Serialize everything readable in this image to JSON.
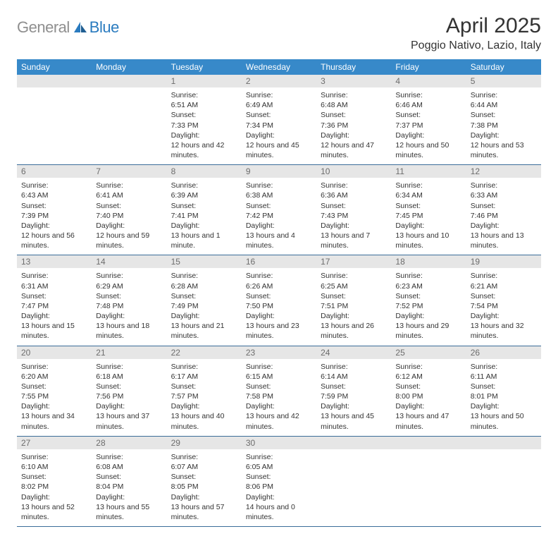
{
  "brand": {
    "general": "General",
    "blue": "Blue"
  },
  "title": "April 2025",
  "location": "Poggio Nativo, Lazio, Italy",
  "colors": {
    "header_bg": "#3789c9",
    "header_fg": "#ffffff",
    "daynum_bg": "#e6e6e6",
    "daynum_fg": "#6d6d6d",
    "rule": "#3b6d99",
    "logo_gray": "#8f8f8f",
    "logo_blue": "#2a7bbf"
  },
  "weekdays": [
    "Sunday",
    "Monday",
    "Tuesday",
    "Wednesday",
    "Thursday",
    "Friday",
    "Saturday"
  ],
  "first_weekday_index": 2,
  "days": [
    {
      "n": 1,
      "sunrise": "6:51 AM",
      "sunset": "7:33 PM",
      "daylight": "12 hours and 42 minutes."
    },
    {
      "n": 2,
      "sunrise": "6:49 AM",
      "sunset": "7:34 PM",
      "daylight": "12 hours and 45 minutes."
    },
    {
      "n": 3,
      "sunrise": "6:48 AM",
      "sunset": "7:36 PM",
      "daylight": "12 hours and 47 minutes."
    },
    {
      "n": 4,
      "sunrise": "6:46 AM",
      "sunset": "7:37 PM",
      "daylight": "12 hours and 50 minutes."
    },
    {
      "n": 5,
      "sunrise": "6:44 AM",
      "sunset": "7:38 PM",
      "daylight": "12 hours and 53 minutes."
    },
    {
      "n": 6,
      "sunrise": "6:43 AM",
      "sunset": "7:39 PM",
      "daylight": "12 hours and 56 minutes."
    },
    {
      "n": 7,
      "sunrise": "6:41 AM",
      "sunset": "7:40 PM",
      "daylight": "12 hours and 59 minutes."
    },
    {
      "n": 8,
      "sunrise": "6:39 AM",
      "sunset": "7:41 PM",
      "daylight": "13 hours and 1 minute."
    },
    {
      "n": 9,
      "sunrise": "6:38 AM",
      "sunset": "7:42 PM",
      "daylight": "13 hours and 4 minutes."
    },
    {
      "n": 10,
      "sunrise": "6:36 AM",
      "sunset": "7:43 PM",
      "daylight": "13 hours and 7 minutes."
    },
    {
      "n": 11,
      "sunrise": "6:34 AM",
      "sunset": "7:45 PM",
      "daylight": "13 hours and 10 minutes."
    },
    {
      "n": 12,
      "sunrise": "6:33 AM",
      "sunset": "7:46 PM",
      "daylight": "13 hours and 13 minutes."
    },
    {
      "n": 13,
      "sunrise": "6:31 AM",
      "sunset": "7:47 PM",
      "daylight": "13 hours and 15 minutes."
    },
    {
      "n": 14,
      "sunrise": "6:29 AM",
      "sunset": "7:48 PM",
      "daylight": "13 hours and 18 minutes."
    },
    {
      "n": 15,
      "sunrise": "6:28 AM",
      "sunset": "7:49 PM",
      "daylight": "13 hours and 21 minutes."
    },
    {
      "n": 16,
      "sunrise": "6:26 AM",
      "sunset": "7:50 PM",
      "daylight": "13 hours and 23 minutes."
    },
    {
      "n": 17,
      "sunrise": "6:25 AM",
      "sunset": "7:51 PM",
      "daylight": "13 hours and 26 minutes."
    },
    {
      "n": 18,
      "sunrise": "6:23 AM",
      "sunset": "7:52 PM",
      "daylight": "13 hours and 29 minutes."
    },
    {
      "n": 19,
      "sunrise": "6:21 AM",
      "sunset": "7:54 PM",
      "daylight": "13 hours and 32 minutes."
    },
    {
      "n": 20,
      "sunrise": "6:20 AM",
      "sunset": "7:55 PM",
      "daylight": "13 hours and 34 minutes."
    },
    {
      "n": 21,
      "sunrise": "6:18 AM",
      "sunset": "7:56 PM",
      "daylight": "13 hours and 37 minutes."
    },
    {
      "n": 22,
      "sunrise": "6:17 AM",
      "sunset": "7:57 PM",
      "daylight": "13 hours and 40 minutes."
    },
    {
      "n": 23,
      "sunrise": "6:15 AM",
      "sunset": "7:58 PM",
      "daylight": "13 hours and 42 minutes."
    },
    {
      "n": 24,
      "sunrise": "6:14 AM",
      "sunset": "7:59 PM",
      "daylight": "13 hours and 45 minutes."
    },
    {
      "n": 25,
      "sunrise": "6:12 AM",
      "sunset": "8:00 PM",
      "daylight": "13 hours and 47 minutes."
    },
    {
      "n": 26,
      "sunrise": "6:11 AM",
      "sunset": "8:01 PM",
      "daylight": "13 hours and 50 minutes."
    },
    {
      "n": 27,
      "sunrise": "6:10 AM",
      "sunset": "8:02 PM",
      "daylight": "13 hours and 52 minutes."
    },
    {
      "n": 28,
      "sunrise": "6:08 AM",
      "sunset": "8:04 PM",
      "daylight": "13 hours and 55 minutes."
    },
    {
      "n": 29,
      "sunrise": "6:07 AM",
      "sunset": "8:05 PM",
      "daylight": "13 hours and 57 minutes."
    },
    {
      "n": 30,
      "sunrise": "6:05 AM",
      "sunset": "8:06 PM",
      "daylight": "14 hours and 0 minutes."
    }
  ],
  "labels": {
    "sunrise": "Sunrise:",
    "sunset": "Sunset:",
    "daylight": "Daylight:"
  }
}
